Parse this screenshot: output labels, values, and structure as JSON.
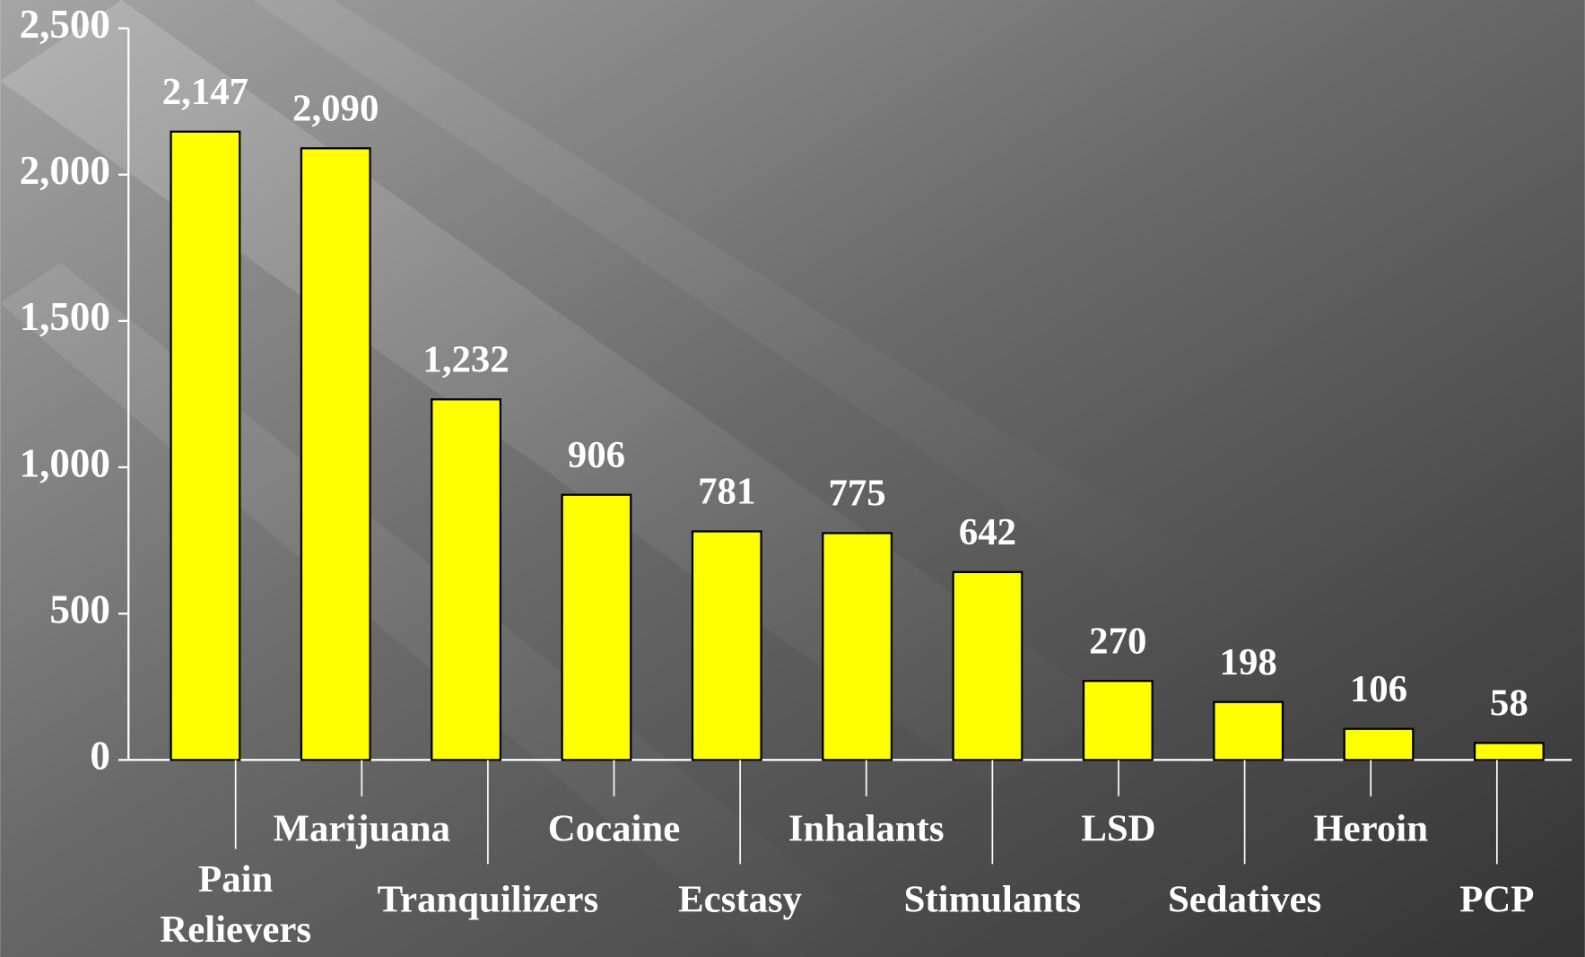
{
  "chart_data": {
    "type": "bar",
    "categories": [
      "Pain Relievers",
      "Marijuana",
      "Tranquilizers",
      "Cocaine",
      "Ecstasy",
      "Inhalants",
      "Stimulants",
      "LSD",
      "Sedatives",
      "Heroin",
      "PCP"
    ],
    "values": [
      2147,
      2090,
      1232,
      906,
      781,
      775,
      642,
      270,
      198,
      106,
      58
    ],
    "value_labels": [
      "2,147",
      "2,090",
      "1,232",
      "906",
      "781",
      "775",
      "642",
      "270",
      "198",
      "106",
      "58"
    ],
    "color": "#ffff00",
    "ylim": [
      0,
      2500
    ],
    "yticks": [
      0,
      500,
      {
        "value": 1000,
        "label": "1,000"
      },
      {
        "value": 1500,
        "label": "1,500"
      },
      {
        "value": 2000,
        "label": "2,000"
      },
      {
        "value": 2500,
        "label": "2,500"
      }
    ]
  }
}
